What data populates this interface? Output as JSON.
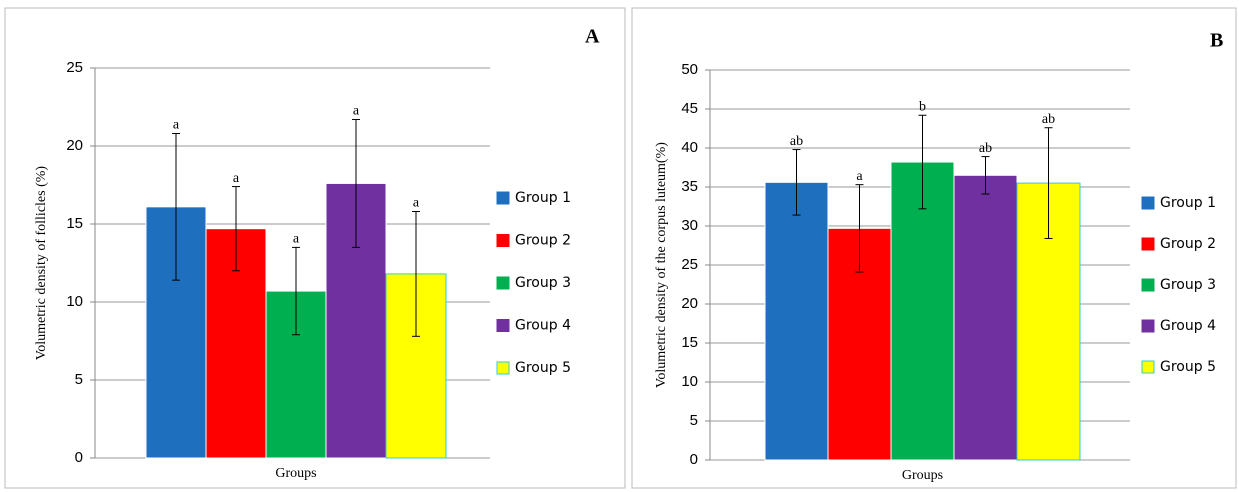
{
  "chart_data": [
    {
      "type": "bar",
      "panel_label": "A",
      "ylabel": "Volumetric density of follicles (%)",
      "xlabel": "Groups",
      "ylim": [
        0,
        25
      ],
      "yticks": [
        0,
        5,
        10,
        15,
        20,
        25
      ],
      "grid": true,
      "legend": "right",
      "series": [
        {
          "name": "Group 1",
          "color": "#1f6fbf",
          "values": [
            16.1
          ],
          "errors": [
            4.7
          ],
          "significance": "a"
        },
        {
          "name": "Group 2",
          "color": "#ff0000",
          "values": [
            14.7
          ],
          "errors": [
            2.7
          ],
          "significance": "a"
        },
        {
          "name": "Group 3",
          "color": "#00b050",
          "values": [
            10.7
          ],
          "errors": [
            2.8
          ],
          "significance": "a"
        },
        {
          "name": "Group 4",
          "color": "#7030a0",
          "values": [
            17.6
          ],
          "errors": [
            4.1
          ],
          "significance": "a"
        },
        {
          "name": "Group 5",
          "color": "#ffff00",
          "values": [
            11.8
          ],
          "errors": [
            4.0
          ],
          "significance": "a"
        }
      ]
    },
    {
      "type": "bar",
      "panel_label": "B",
      "ylabel": "Volumetric density of the corpus luteum(%)",
      "xlabel": "Groups",
      "ylim": [
        0,
        50
      ],
      "yticks": [
        0,
        5,
        10,
        15,
        20,
        25,
        30,
        35,
        40,
        45,
        50
      ],
      "grid": true,
      "legend": "right",
      "series": [
        {
          "name": "Group 1",
          "color": "#1f6fbf",
          "values": [
            35.6
          ],
          "errors": [
            4.2
          ],
          "significance": "ab"
        },
        {
          "name": "Group 2",
          "color": "#ff0000",
          "values": [
            29.7
          ],
          "errors": [
            5.6
          ],
          "significance": "a"
        },
        {
          "name": "Group 3",
          "color": "#00b050",
          "values": [
            38.2
          ],
          "errors": [
            6.0
          ],
          "significance": "b"
        },
        {
          "name": "Group 4",
          "color": "#7030a0",
          "values": [
            36.5
          ],
          "errors": [
            2.4
          ],
          "significance": "ab"
        },
        {
          "name": "Group 5",
          "color": "#ffff00",
          "values": [
            35.5
          ],
          "errors": [
            7.1
          ],
          "significance": "ab"
        }
      ]
    }
  ]
}
